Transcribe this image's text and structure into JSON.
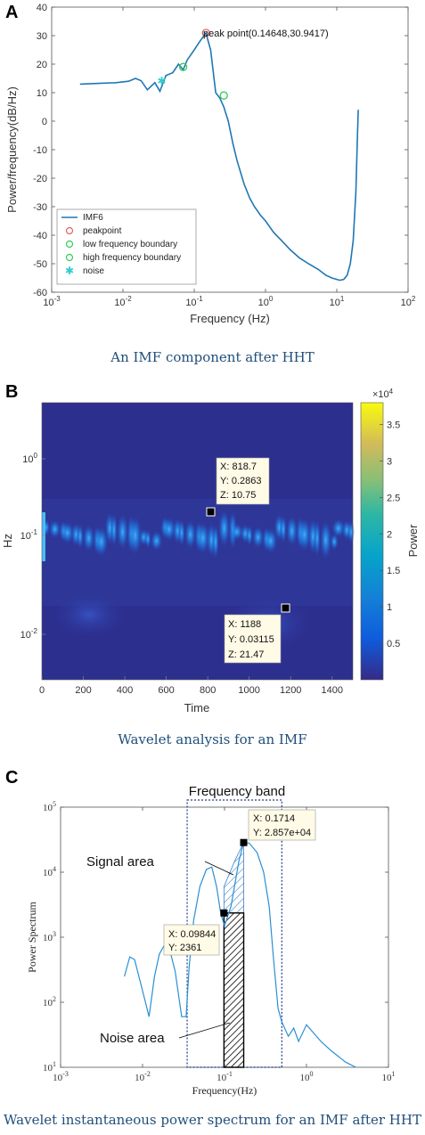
{
  "panels": {
    "a": {
      "letter": "A",
      "caption": "An IMF component after HHT",
      "chart_data": {
        "type": "line",
        "xlabel": "Frequency (Hz)",
        "ylabel": "Power/frequency(dB/Hz)",
        "xscale": "log",
        "xlim": [
          0.001,
          100
        ],
        "ylim": [
          -60,
          40
        ],
        "xticks": [
          "10^-3",
          "10^-2",
          "10^-1",
          "10^0",
          "10^1",
          "10^2"
        ],
        "yticks": [
          "-60",
          "-50",
          "-40",
          "-30",
          "-20",
          "-10",
          "0",
          "10",
          "20",
          "30",
          "40"
        ],
        "series": [
          {
            "name": "IMF6",
            "x": [
              0.0025,
              0.005,
              0.008,
              0.012,
              0.015,
              0.018,
              0.022,
              0.028,
              0.033,
              0.04,
              0.05,
              0.06,
              0.07,
              0.08,
              0.1,
              0.12,
              0.146,
              0.17,
              0.2,
              0.23,
              0.26,
              0.3,
              0.35,
              0.4,
              0.5,
              0.6,
              0.7,
              0.85,
              1.0,
              1.3,
              1.7,
              2.2,
              3.0,
              4.0,
              5.5,
              7.0,
              8.5,
              10,
              11,
              12.5,
              14,
              15.5,
              17,
              18.5,
              19.5,
              20
            ],
            "y": [
              13,
              13.3,
              13.5,
              14,
              15,
              14.2,
              11,
              13.5,
              10.5,
              16,
              17,
              20,
              18,
              21.5,
              25,
              28,
              30.9,
              25,
              10,
              8,
              5,
              0,
              -8,
              -14,
              -22,
              -27,
              -30,
              -33,
              -35,
              -39,
              -42,
              -45,
              -48,
              -50,
              -52,
              -54,
              -55,
              -55.5,
              -55.8,
              -55.5,
              -54,
              -50,
              -42,
              -25,
              -5,
              4
            ]
          }
        ],
        "markers": [
          {
            "name": "peakpoint",
            "x": 0.14648,
            "y": 30.9417,
            "color": "#e06060",
            "symbol": "circle"
          },
          {
            "name": "low frequency boundary",
            "x": 0.07,
            "y": 19,
            "color": "#33cc55",
            "symbol": "circle"
          },
          {
            "name": "high frequency boundary",
            "x": 0.26,
            "y": 9,
            "color": "#33cc55",
            "symbol": "circle"
          },
          {
            "name": "noise",
            "x": 0.035,
            "y": 14,
            "color": "#33cccc",
            "symbol": "star"
          }
        ],
        "annotation": "peak point(0.14648,30.9417)",
        "legend": [
          "IMF6",
          "peakpoint",
          "low frequency boundary",
          "high frequency boundary",
          "noise"
        ],
        "legend_placement": "bottom-left",
        "line_color": "#1f77b4"
      }
    },
    "b": {
      "letter": "B",
      "caption": "Wavelet analysis for an IMF",
      "chart_data": {
        "type": "heatmap",
        "xlabel": "Time",
        "ylabel": "Hz",
        "xlim": [
          0,
          1500
        ],
        "yscale": "log",
        "xticks": [
          "0",
          "200",
          "400",
          "600",
          "800",
          "1000",
          "1200",
          "1400"
        ],
        "yticks": [
          "10^0",
          "10^-1",
          "10^-2"
        ],
        "colorbar_label": "Power",
        "colorbar_multiplier": "×10^4",
        "colorbar_ticks": [
          "0.5",
          "1",
          "1.5",
          "2",
          "2.5",
          "3",
          "3.5"
        ],
        "datatips": [
          {
            "X": "818.7",
            "Y": "0.2863",
            "Z": "10.75"
          },
          {
            "X": "1188",
            "Y": "0.03115",
            "Z": "21.47"
          }
        ]
      }
    },
    "c": {
      "letter": "C",
      "caption": "Wavelet instantaneous power spectrum for an IMF after HHT",
      "chart_data": {
        "type": "line",
        "xlabel": "Frequency(Hz)",
        "ylabel": "Power Spectrum",
        "xscale": "log",
        "yscale": "log",
        "xlim": [
          0.001,
          10
        ],
        "ylim": [
          10,
          100000
        ],
        "xticks": [
          "10^-3",
          "10^-2",
          "10^-1",
          "10^0",
          "10^1"
        ],
        "yticks": [
          "10^1",
          "10^2",
          "10^3",
          "10^4",
          "10^5"
        ],
        "series": [
          {
            "x": [
              0.006,
              0.007,
              0.008,
              0.01,
              0.012,
              0.014,
              0.016,
              0.02,
              0.025,
              0.03,
              0.034,
              0.037,
              0.042,
              0.05,
              0.06,
              0.07,
              0.08,
              0.09,
              0.1,
              0.12,
              0.15,
              0.1714,
              0.2,
              0.25,
              0.3,
              0.35,
              0.4,
              0.45,
              0.5,
              0.6,
              0.7,
              0.8,
              1.0,
              1.5,
              2.0,
              3.0,
              4.0
            ],
            "y": [
              250,
              500,
              450,
              150,
              60,
              250,
              550,
              900,
              300,
              60,
              60,
              350,
              1800,
              6000,
              11000,
              12000,
              6000,
              2300,
              1500,
              3000,
              15000,
              28570,
              28000,
              20000,
              10000,
              3000,
              400,
              80,
              50,
              30,
              40,
              25,
              45,
              25,
              18,
              12,
              10
            ]
          }
        ],
        "line_color": "#2a8fd6",
        "band_title": "Frequency band",
        "band_range": [
          0.035,
          0.5
        ],
        "signal_label": "Signal area",
        "noise_label": "Noise area",
        "datatips": [
          {
            "X": "0.1714",
            "Y": "2.857e+04"
          },
          {
            "X": "0.09844",
            "Y": "2361"
          }
        ]
      }
    }
  }
}
